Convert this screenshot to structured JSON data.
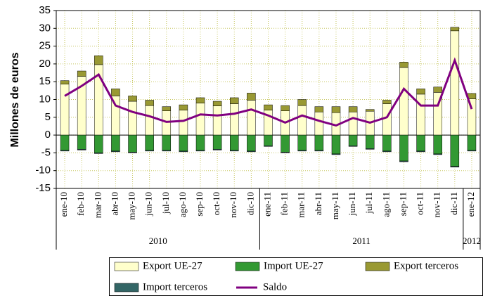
{
  "chart_data": {
    "type": "bar",
    "y_label": "Millones de euros",
    "stacked": true,
    "categories": [
      "ene-10",
      "feb-10",
      "mar-10",
      "abr-10",
      "may-10",
      "jun-10",
      "jul-10",
      "ago-10",
      "sep-10",
      "oct-10",
      "nov-10",
      "dic-10",
      "ene-11",
      "feb-11",
      "mar-11",
      "abr-11",
      "may-11",
      "jun-11",
      "jul-11",
      "ago-11",
      "sep-11",
      "oct-11",
      "nov-11",
      "dic-11",
      "ene-12"
    ],
    "year_groups": [
      "2010",
      "2011",
      "2012"
    ],
    "series": [
      {
        "name": "Export UE-27",
        "color": "#ffffcc",
        "values": [
          14.3,
          16.5,
          19.8,
          11,
          9.5,
          8.3,
          6.8,
          7,
          9,
          8.2,
          8.8,
          9.8,
          7,
          6.8,
          8.3,
          6.5,
          6.3,
          6.5,
          6.7,
          8.8,
          19,
          11.5,
          12,
          29.3,
          10.2
        ]
      },
      {
        "name": "Import UE-27",
        "color": "#339933",
        "values": [
          -4.3,
          -4,
          -5,
          -4.5,
          -4.8,
          -4.3,
          -4.3,
          -4.5,
          -4.3,
          -4,
          -4.3,
          -4.5,
          -3,
          -4.8,
          -4.3,
          -4.3,
          -5.3,
          -3,
          -3.8,
          -4.5,
          -7.3,
          -4.5,
          -5.3,
          -8.8,
          -4.3
        ]
      },
      {
        "name": "Export terceros",
        "color": "#999933",
        "values": [
          1,
          1.5,
          2.5,
          2,
          1.5,
          1.5,
          1.2,
          1.5,
          1.5,
          1.3,
          1.7,
          2,
          1.5,
          1.5,
          1.7,
          1.5,
          1.7,
          1.5,
          0.5,
          1,
          1.5,
          1.5,
          1.5,
          1,
          1.5
        ]
      },
      {
        "name": "Import terceros",
        "color": "#336666",
        "values": [
          -0.2,
          -0.2,
          -0.2,
          -0.2,
          -0.2,
          -0.2,
          -0.2,
          -0.2,
          -0.2,
          -0.2,
          -0.2,
          -0.2,
          -0.2,
          -0.2,
          -0.2,
          -0.2,
          -0.2,
          -0.2,
          -0.2,
          -0.2,
          -0.2,
          -0.2,
          -0.2,
          -0.2,
          -0.2
        ]
      },
      {
        "name": "Saldo",
        "type": "line",
        "color": "#800080",
        "values": [
          11,
          13.8,
          17,
          8.3,
          6.5,
          5.3,
          3.7,
          4,
          5.8,
          5.5,
          6,
          7.2,
          5.5,
          3.5,
          5.5,
          4,
          2.7,
          4.8,
          3.5,
          5,
          13,
          8.3,
          8.3,
          21,
          7.3
        ]
      }
    ],
    "ylim": [
      -15,
      35
    ],
    "yticks": [
      -15,
      -10,
      -5,
      0,
      5,
      10,
      15,
      20,
      25,
      30,
      35
    ],
    "grid": true
  }
}
